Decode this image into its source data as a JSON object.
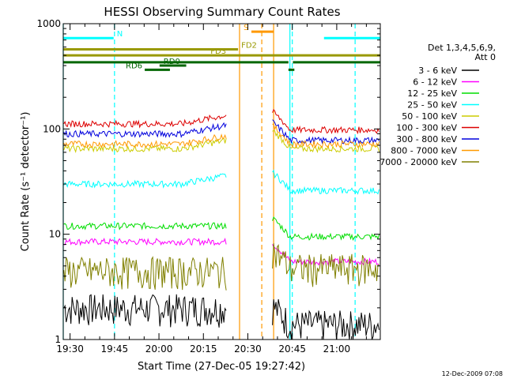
{
  "chart_data": {
    "type": "line",
    "title": "HESSI Observing Summary Count Rates",
    "xlabel": "Start Time (27-Dec-05 19:27:42)",
    "ylabel": "Count Rate (s⁻¹ detector⁻¹)",
    "x_range_minutes": [
      0,
      107
    ],
    "y_scale": "log",
    "ylim": [
      1,
      1000
    ],
    "x_ticks": [
      {
        "t": 2.3,
        "label": "19:30"
      },
      {
        "t": 17.3,
        "label": "19:45"
      },
      {
        "t": 32.3,
        "label": "20:00"
      },
      {
        "t": 47.3,
        "label": "20:15"
      },
      {
        "t": 62.3,
        "label": "20:30"
      },
      {
        "t": 77.3,
        "label": "20:45"
      },
      {
        "t": 92.3,
        "label": "21:00"
      }
    ],
    "y_ticks": [
      {
        "v": 1,
        "label": "1"
      },
      {
        "v": 10,
        "label": "10"
      },
      {
        "v": 100,
        "label": "100"
      },
      {
        "v": 1000,
        "label": "1000"
      }
    ],
    "legend_header": [
      "Det 1,3,4,5,6,9,",
      "Att 0"
    ],
    "series": [
      {
        "name": "3 - 6 keV",
        "color": "#000000",
        "pre": 2.0,
        "post": 1.4
      },
      {
        "name": "6 - 12 keV",
        "color": "#ff00ff",
        "pre": 8.5,
        "post": 5.5
      },
      {
        "name": "12 - 25 keV",
        "color": "#00dd00",
        "pre": 12.0,
        "post": 9.5
      },
      {
        "name": "25 - 50 keV",
        "color": "#00ffff",
        "pre": 30.0,
        "post": 26.0
      },
      {
        "name": "50 - 100 keV",
        "color": "#cccc00",
        "pre": 65.0,
        "post": 65.0
      },
      {
        "name": "100 - 300 keV",
        "color": "#dd0000",
        "pre": 112.0,
        "post": 98.0
      },
      {
        "name": "300 - 800 keV",
        "color": "#0000dd",
        "pre": 90.0,
        "post": 78.0
      },
      {
        "name": "800 - 7000 keV",
        "color": "#ff9900",
        "pre": 72.0,
        "post": 72.0
      },
      {
        "name": "7000 - 20000 keV",
        "color": "#808000",
        "pre": 4.5,
        "post": 4.8
      }
    ],
    "flag_bars": [
      {
        "label": "N",
        "color": "#00ffff",
        "segments": [
          [
            0,
            17
          ],
          [
            88,
            107
          ]
        ],
        "v": 730
      },
      {
        "label": "S",
        "color": "#ff9900",
        "segments": [
          [
            63.5,
            71
          ]
        ],
        "v": 840
      },
      {
        "label": "FD2",
        "color": "#999900",
        "segments": [
          [
            0,
            59
          ]
        ],
        "v": 570
      },
      {
        "label": "FD3",
        "color": "#999900",
        "segments": [
          [
            0,
            107
          ]
        ],
        "v": 500
      },
      {
        "label": "",
        "color": "#006600",
        "segments": [
          [
            0,
            76
          ],
          [
            77.5,
            107
          ]
        ],
        "v": 430
      },
      {
        "label": "RD0",
        "color": "#006600",
        "segments": [
          [
            32.5,
            41.5
          ]
        ],
        "v": 400
      },
      {
        "label": "RD6",
        "color": "#006600",
        "segments": [
          [
            27.5,
            36
          ]
        ],
        "v": 365
      },
      {
        "label": "",
        "color": "#006600",
        "segments": [
          [
            76,
            78
          ]
        ],
        "v": 365
      }
    ],
    "vlines": [
      {
        "t": 0,
        "color": "#00ffff",
        "dashed": false
      },
      {
        "t": 17.3,
        "color": "#00ffff",
        "dashed": true
      },
      {
        "t": 59.5,
        "color": "#ff9900",
        "dashed": false
      },
      {
        "t": 67.0,
        "color": "#ff9900",
        "dashed": true
      },
      {
        "t": 71.0,
        "color": "#ff9900",
        "dashed": false
      },
      {
        "t": 76.5,
        "color": "#00ffff",
        "dashed": false
      },
      {
        "t": 77.3,
        "color": "#00ffff",
        "dashed": true
      },
      {
        "t": 98.5,
        "color": "#00ffff",
        "dashed": true
      }
    ],
    "gap_minutes": [
      55,
      70.5
    ],
    "footer_date": "12-Dec-2009 07:08"
  }
}
